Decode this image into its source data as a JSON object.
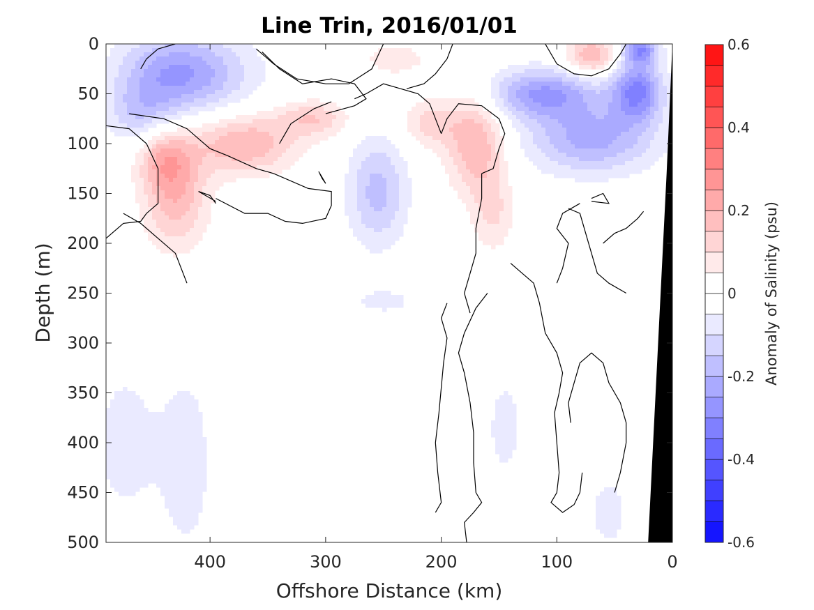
{
  "chart_data": {
    "type": "contour",
    "title": "Line Trin, 2016/01/01",
    "xlabel": "Offshore Distance (km)",
    "ylabel": "Depth (m)",
    "colorbar_label": "Anomaly of Salinity (psu)",
    "xlim": [
      490,
      0
    ],
    "ylim": [
      500,
      0
    ],
    "x_reversed": true,
    "y_reversed": true,
    "xticks": [
      400,
      300,
      200,
      100,
      0
    ],
    "xtick_labels": [
      "400",
      "300",
      "200",
      "100",
      "0"
    ],
    "yticks": [
      0,
      50,
      100,
      150,
      200,
      250,
      300,
      350,
      400,
      450,
      500
    ],
    "ytick_labels": [
      "0",
      "50",
      "100",
      "150",
      "200",
      "250",
      "300",
      "350",
      "400",
      "450",
      "500"
    ],
    "colorbar_ticks": [
      -0.6,
      -0.4,
      -0.2,
      0,
      0.2,
      0.4,
      0.6
    ],
    "colorbar_tick_labels": [
      "-0.6",
      "-0.4",
      "-0.2",
      "0",
      "0.2",
      "0.4",
      "0.6"
    ],
    "colorbar_range": [
      -0.6,
      0.6
    ],
    "colorbar_step": 0.05,
    "colormap": "blue-white-red",
    "color_negative_max": "#0000ff",
    "color_positive_max": "#ff0000",
    "features": [
      {
        "sign": -1,
        "cx": 440,
        "cy": 30,
        "rx": 45,
        "ry": 40,
        "amp": -0.16
      },
      {
        "sign": -1,
        "cx": 405,
        "cy": 30,
        "rx": 50,
        "ry": 40,
        "amp": -0.14
      },
      {
        "sign": -1,
        "cx": 460,
        "cy": 70,
        "rx": 30,
        "ry": 30,
        "amp": -0.12
      },
      {
        "sign": -1,
        "cx": 255,
        "cy": 148,
        "rx": 26,
        "ry": 55,
        "amp": -0.17
      },
      {
        "sign": -1,
        "cx": 112,
        "cy": 50,
        "rx": 48,
        "ry": 25,
        "amp": -0.25
      },
      {
        "sign": -1,
        "cx": 30,
        "cy": 47,
        "rx": 22,
        "ry": 30,
        "amp": -0.3
      },
      {
        "sign": -1,
        "cx": 70,
        "cy": 95,
        "rx": 55,
        "ry": 35,
        "amp": -0.22
      },
      {
        "sign": -1,
        "cx": 28,
        "cy": 5,
        "rx": 15,
        "ry": 15,
        "amp": -0.28
      },
      {
        "sign": -1,
        "cx": 475,
        "cy": 400,
        "rx": 30,
        "ry": 90,
        "amp": -0.07
      },
      {
        "sign": -1,
        "cx": 420,
        "cy": 420,
        "rx": 28,
        "ry": 120,
        "amp": -0.07
      },
      {
        "sign": -1,
        "cx": 145,
        "cy": 385,
        "rx": 18,
        "ry": 60,
        "amp": -0.07
      },
      {
        "sign": -1,
        "cx": 55,
        "cy": 470,
        "rx": 20,
        "ry": 45,
        "amp": -0.07
      },
      {
        "sign": -1,
        "cx": 250,
        "cy": 258,
        "rx": 26,
        "ry": 12,
        "amp": -0.08
      },
      {
        "sign": 1,
        "cx": 430,
        "cy": 150,
        "rx": 28,
        "ry": 55,
        "amp": 0.19
      },
      {
        "sign": 1,
        "cx": 440,
        "cy": 115,
        "rx": 22,
        "ry": 30,
        "amp": 0.13
      },
      {
        "sign": 1,
        "cx": 370,
        "cy": 100,
        "rx": 45,
        "ry": 30,
        "amp": 0.2
      },
      {
        "sign": 1,
        "cx": 310,
        "cy": 75,
        "rx": 30,
        "ry": 18,
        "amp": 0.14
      },
      {
        "sign": 1,
        "cx": 170,
        "cy": 100,
        "rx": 25,
        "ry": 50,
        "amp": 0.2
      },
      {
        "sign": 1,
        "cx": 210,
        "cy": 80,
        "rx": 25,
        "ry": 25,
        "amp": 0.12
      },
      {
        "sign": 1,
        "cx": 155,
        "cy": 170,
        "rx": 18,
        "ry": 40,
        "amp": 0.1
      },
      {
        "sign": 1,
        "cx": 70,
        "cy": 12,
        "rx": 22,
        "ry": 20,
        "amp": 0.2
      },
      {
        "sign": 1,
        "cx": 240,
        "cy": 15,
        "rx": 25,
        "ry": 15,
        "amp": 0.1
      }
    ],
    "zero_contours": [
      [
        [
          490,
          195
        ],
        [
          475,
          180
        ],
        [
          460,
          178
        ],
        [
          455,
          170
        ],
        [
          445,
          160
        ],
        [
          445,
          125
        ],
        [
          455,
          100
        ],
        [
          470,
          85
        ],
        [
          490,
          82
        ]
      ],
      [
        [
          420,
          240
        ],
        [
          430,
          210
        ],
        [
          445,
          195
        ],
        [
          460,
          180
        ],
        [
          475,
          170
        ]
      ],
      [
        [
          395,
          155
        ],
        [
          370,
          170
        ],
        [
          350,
          170
        ],
        [
          335,
          178
        ],
        [
          320,
          180
        ],
        [
          300,
          175
        ],
        [
          295,
          162
        ],
        [
          295,
          148
        ],
        [
          315,
          145
        ],
        [
          345,
          130
        ],
        [
          360,
          125
        ],
        [
          385,
          112
        ],
        [
          400,
          105
        ],
        [
          420,
          85
        ],
        [
          440,
          75
        ],
        [
          470,
          70
        ]
      ],
      [
        [
          395,
          160
        ],
        [
          400,
          152
        ],
        [
          410,
          148
        ],
        [
          395,
          158
        ]
      ],
      [
        [
          305,
          130
        ],
        [
          300,
          140
        ],
        [
          303,
          135
        ],
        [
          306,
          128
        ]
      ],
      [
        [
          300,
          70
        ],
        [
          275,
          62
        ],
        [
          265,
          55
        ],
        [
          275,
          40
        ],
        [
          295,
          35
        ],
        [
          320,
          40
        ],
        [
          340,
          25
        ],
        [
          355,
          8
        ]
      ],
      [
        [
          295,
          58
        ],
        [
          310,
          65
        ],
        [
          330,
          80
        ],
        [
          335,
          90
        ],
        [
          340,
          100
        ]
      ],
      [
        [
          250,
          0
        ],
        [
          260,
          25
        ],
        [
          280,
          40
        ],
        [
          300,
          40
        ],
        [
          325,
          35
        ],
        [
          345,
          20
        ],
        [
          360,
          5
        ]
      ],
      [
        [
          430,
          0
        ],
        [
          445,
          5
        ],
        [
          455,
          15
        ],
        [
          460,
          25
        ]
      ],
      [
        [
          235,
          45
        ],
        [
          250,
          40
        ],
        [
          265,
          50
        ],
        [
          275,
          55
        ]
      ],
      [
        [
          200,
          90
        ],
        [
          210,
          60
        ],
        [
          220,
          50
        ],
        [
          235,
          45
        ]
      ],
      [
        [
          200,
          90
        ],
        [
          195,
          75
        ],
        [
          185,
          60
        ],
        [
          165,
          62
        ],
        [
          150,
          75
        ],
        [
          145,
          90
        ],
        [
          150,
          105
        ],
        [
          155,
          125
        ],
        [
          165,
          130
        ]
      ],
      [
        [
          165,
          130
        ],
        [
          165,
          155
        ],
        [
          170,
          185
        ],
        [
          170,
          210
        ],
        [
          175,
          230
        ],
        [
          180,
          250
        ],
        [
          175,
          270
        ]
      ],
      [
        [
          160,
          250
        ],
        [
          170,
          265
        ],
        [
          180,
          290
        ],
        [
          185,
          310
        ],
        [
          180,
          330
        ],
        [
          175,
          360
        ],
        [
          172,
          390
        ],
        [
          172,
          420
        ],
        [
          170,
          450
        ],
        [
          165,
          460
        ],
        [
          172,
          470
        ],
        [
          180,
          480
        ],
        [
          178,
          500
        ]
      ],
      [
        [
          195,
          260
        ],
        [
          200,
          275
        ],
        [
          195,
          295
        ],
        [
          198,
          320
        ],
        [
          200,
          345
        ],
        [
          202,
          370
        ],
        [
          205,
          400
        ],
        [
          203,
          430
        ],
        [
          200,
          460
        ],
        [
          205,
          470
        ]
      ],
      [
        [
          140,
          220
        ],
        [
          130,
          230
        ],
        [
          120,
          240
        ],
        [
          115,
          260
        ],
        [
          110,
          290
        ],
        [
          100,
          310
        ],
        [
          95,
          330
        ],
        [
          98,
          350
        ],
        [
          102,
          370
        ],
        [
          100,
          400
        ],
        [
          98,
          430
        ],
        [
          100,
          450
        ],
        [
          105,
          460
        ],
        [
          95,
          470
        ],
        [
          85,
          462
        ],
        [
          80,
          450
        ],
        [
          78,
          430
        ]
      ],
      [
        [
          90,
          165
        ],
        [
          80,
          170
        ],
        [
          75,
          190
        ],
        [
          70,
          210
        ],
        [
          65,
          230
        ],
        [
          55,
          240
        ],
        [
          40,
          250
        ]
      ],
      [
        [
          100,
          240
        ],
        [
          95,
          225
        ],
        [
          90,
          200
        ],
        [
          100,
          185
        ],
        [
          95,
          170
        ],
        [
          80,
          160
        ]
      ],
      [
        [
          70,
          155
        ],
        [
          60,
          150
        ],
        [
          55,
          160
        ],
        [
          70,
          158
        ]
      ],
      [
        [
          60,
          200
        ],
        [
          50,
          190
        ],
        [
          40,
          185
        ],
        [
          30,
          175
        ],
        [
          25,
          168
        ]
      ],
      [
        [
          50,
          450
        ],
        [
          45,
          430
        ],
        [
          40,
          400
        ],
        [
          40,
          380
        ],
        [
          45,
          360
        ],
        [
          55,
          340
        ],
        [
          60,
          320
        ],
        [
          70,
          310
        ],
        [
          80,
          320
        ],
        [
          85,
          340
        ],
        [
          90,
          360
        ],
        [
          88,
          380
        ]
      ],
      [
        [
          190,
          0
        ],
        [
          195,
          15
        ],
        [
          205,
          30
        ],
        [
          215,
          40
        ],
        [
          230,
          45
        ]
      ],
      [
        [
          110,
          0
        ],
        [
          100,
          20
        ],
        [
          85,
          30
        ],
        [
          70,
          32
        ],
        [
          55,
          25
        ],
        [
          45,
          10
        ],
        [
          40,
          0
        ]
      ]
    ],
    "seafloor": [
      [
        21,
        500
      ],
      [
        5,
        130
      ],
      [
        0,
        0
      ]
    ],
    "seafloor_color": "#000000"
  }
}
